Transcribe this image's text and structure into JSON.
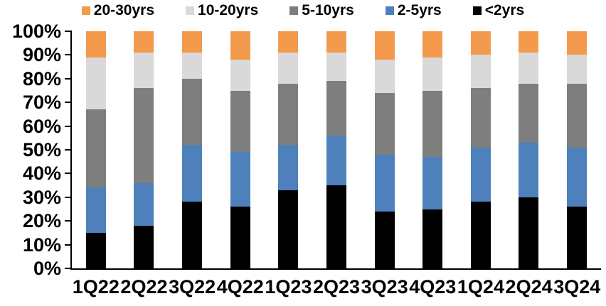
{
  "chart_data": {
    "type": "bar",
    "stacked": true,
    "orientation": "vertical",
    "title": "",
    "xlabel": "",
    "ylabel": "",
    "grid": false,
    "legend_position": "top",
    "legend_order": [
      "20-30yrs",
      "10-20yrs",
      "5-10yrs",
      "2-5yrs",
      "<2yrs"
    ],
    "y_axis": {
      "min": 0,
      "max": 100,
      "tick_step": 10,
      "tick_labels": [
        "0%",
        "10%",
        "20%",
        "30%",
        "40%",
        "50%",
        "60%",
        "70%",
        "80%",
        "90%",
        "100%"
      ],
      "unit": "%"
    },
    "categories": [
      "1Q22",
      "2Q22",
      "3Q22",
      "4Q22",
      "1Q23",
      "2Q23",
      "3Q23",
      "4Q23",
      "1Q24",
      "2Q24",
      "3Q24"
    ],
    "series": [
      {
        "name": "<2yrs",
        "color": "#000000",
        "values": [
          15,
          18,
          28,
          26,
          33,
          35,
          24,
          25,
          28,
          30,
          26
        ]
      },
      {
        "name": "2-5yrs",
        "color": "#4E80BC",
        "values": [
          19,
          18,
          24,
          23,
          19,
          21,
          24,
          22,
          23,
          23,
          25
        ]
      },
      {
        "name": "5-10yrs",
        "color": "#7E7E7E",
        "values": [
          33,
          40,
          28,
          26,
          26,
          23,
          26,
          28,
          25,
          25,
          27
        ]
      },
      {
        "name": "10-20yrs",
        "color": "#D9D9D9",
        "values": [
          22,
          15,
          11,
          13,
          13,
          12,
          14,
          14,
          14,
          13,
          12
        ]
      },
      {
        "name": "20-30yrs",
        "color": "#F49A4D",
        "values": [
          11,
          9,
          9,
          12,
          9,
          9,
          12,
          11,
          10,
          9,
          10
        ]
      }
    ],
    "axis_color": "#000000",
    "text_color": "#000000"
  }
}
